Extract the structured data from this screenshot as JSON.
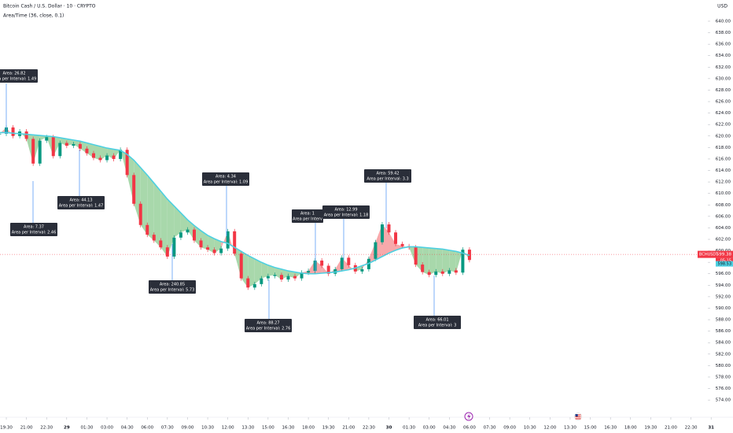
{
  "header": {
    "title": "Bitcoin Cash / U.S. Dollar · 10 · CRYPTO",
    "indicator": "Area/Time (36, close, 0.1)",
    "currency": "USD"
  },
  "chart_data": {
    "type": "candlestick",
    "x": [
      -0.5,
      0,
      0.5,
      1,
      1.5,
      2,
      2.5,
      3,
      3.5,
      4,
      4.5,
      5,
      5.5,
      6,
      6.5,
      7,
      7.5,
      8,
      8.5,
      9,
      9.5,
      10,
      10.5,
      11,
      11.5,
      12,
      12.5,
      13,
      13.5,
      14,
      14.5,
      15,
      15.5,
      16,
      16.5,
      17,
      17.5,
      18,
      18.5,
      19,
      19.5,
      20,
      20.5,
      21,
      21.5,
      22,
      22.5,
      23,
      23.5,
      24,
      24.5,
      25,
      25.5,
      26,
      26.5,
      27,
      27.5,
      28,
      28.5,
      29,
      29.5,
      30,
      30.5,
      31,
      31.5,
      32,
      32.5,
      33,
      33.5,
      34,
      34.5
    ],
    "values": [
      620.4,
      621.5,
      620,
      620.8,
      619.5,
      615.2,
      619.2,
      619.8,
      616.5,
      618.8,
      618.3,
      618.6,
      617.8,
      617,
      616.2,
      615.8,
      616.6,
      616,
      617.6,
      613.2,
      608.2,
      604.5,
      602.8,
      601.8,
      600.6,
      599,
      602.3,
      603.2,
      603.7,
      601.8,
      600.6,
      600.2,
      599.6,
      600.4,
      603.4,
      599.5,
      595.2,
      593.6,
      594.2,
      595.2,
      595.6,
      595.8,
      595,
      595.6,
      595.2,
      596.2,
      596.5,
      598.3,
      597.4,
      596,
      596.8,
      598.8,
      597.5,
      596.4,
      596.8,
      598.6,
      601.5,
      604.6,
      603.2,
      601.2,
      600.8,
      600.6,
      597.6,
      596.3,
      595.8,
      596.4,
      596,
      596.6,
      596.2,
      600.2,
      598.4
    ],
    "up_color": "#089981",
    "down_color": "#f23645",
    "ma": {
      "color": "#4dd0e1",
      "values": [
        620.6,
        620.6,
        620.5,
        620.4,
        620.3,
        620.2,
        620.1,
        620,
        619.9,
        619.7,
        619.5,
        619.3,
        619.1,
        618.8,
        618.5,
        618.2,
        617.9,
        617.7,
        617.5,
        616.8,
        615.8,
        614.5,
        613.2,
        611.8,
        610.4,
        609,
        607.8,
        606.6,
        605.4,
        604.4,
        603.5,
        602.7,
        602.1,
        601.6,
        601.3,
        600.6,
        599.9,
        599.2,
        598.6,
        598,
        597.5,
        597.1,
        596.8,
        596.5,
        596.3,
        596.1,
        596,
        596,
        596.1,
        596.2,
        596.3,
        596.5,
        596.7,
        597,
        597.4,
        597.8,
        598.4,
        599,
        599.6,
        600.1,
        600.5,
        600.7,
        600.7,
        600.6,
        600.5,
        600.4,
        600.3,
        600.1,
        599.9,
        599.6,
        599.2
      ]
    },
    "fill_colors": {
      "above": "#f7a9ab",
      "below": "#a8d8ab"
    },
    "xlim": [
      -0.47,
      54.13
    ],
    "ylim": [
      571,
      643.7
    ],
    "xticks": [
      {
        "value": 0,
        "label": "19:30"
      },
      {
        "value": 1.5,
        "label": "21:00"
      },
      {
        "value": 3,
        "label": "22:30"
      },
      {
        "value": 4.5,
        "label": "29"
      },
      {
        "value": 6,
        "label": "01:30"
      },
      {
        "value": 7.5,
        "label": "03:00"
      },
      {
        "value": 9,
        "label": "04:30"
      },
      {
        "value": 10.5,
        "label": "06:00"
      },
      {
        "value": 12,
        "label": "07:30"
      },
      {
        "value": 13.5,
        "label": "09:00"
      },
      {
        "value": 15,
        "label": "10:30"
      },
      {
        "value": 16.5,
        "label": "12:00"
      },
      {
        "value": 18,
        "label": "13:30"
      },
      {
        "value": 19.5,
        "label": "15:00"
      },
      {
        "value": 21,
        "label": "16:30"
      },
      {
        "value": 22.5,
        "label": "18:00"
      },
      {
        "value": 24,
        "label": "19:30"
      },
      {
        "value": 25.5,
        "label": "21:00"
      },
      {
        "value": 27,
        "label": "22:30"
      },
      {
        "value": 28.5,
        "label": "30"
      },
      {
        "value": 30,
        "label": "01:30"
      },
      {
        "value": 31.5,
        "label": "03:00"
      },
      {
        "value": 33,
        "label": "04:30"
      },
      {
        "value": 34.5,
        "label": "06:00"
      },
      {
        "value": 36,
        "label": "07:30"
      },
      {
        "value": 37.5,
        "label": "09:00"
      },
      {
        "value": 39,
        "label": "10:30"
      },
      {
        "value": 40.5,
        "label": "12:00"
      },
      {
        "value": 42,
        "label": "13:30"
      },
      {
        "value": 43.5,
        "label": "15:00"
      },
      {
        "value": 45,
        "label": "16:30"
      },
      {
        "value": 46.5,
        "label": "18:00"
      },
      {
        "value": 48,
        "label": "19:30"
      },
      {
        "value": 49.5,
        "label": "21:00"
      },
      {
        "value": 51,
        "label": "22:30"
      },
      {
        "value": 52.5,
        "label": "31"
      }
    ],
    "yticks": [
      {
        "value": 640,
        "label": "640.00"
      },
      {
        "value": 638,
        "label": "638.00"
      },
      {
        "value": 636,
        "label": "636.00"
      },
      {
        "value": 634,
        "label": "634.00"
      },
      {
        "value": 632,
        "label": "632.00"
      },
      {
        "value": 630,
        "label": "630.00"
      },
      {
        "value": 628,
        "label": "628.00"
      },
      {
        "value": 626,
        "label": "626.00"
      },
      {
        "value": 624,
        "label": "624.00"
      },
      {
        "value": 622,
        "label": "622.00"
      },
      {
        "value": 620,
        "label": "620.00"
      },
      {
        "value": 618,
        "label": "618.00"
      },
      {
        "value": 616,
        "label": "616.00"
      },
      {
        "value": 614,
        "label": "614.00"
      },
      {
        "value": 612,
        "label": "612.00"
      },
      {
        "value": 610,
        "label": "610.00"
      },
      {
        "value": 608,
        "label": "608.00"
      },
      {
        "value": 606,
        "label": "606.00"
      },
      {
        "value": 604,
        "label": "604.00"
      },
      {
        "value": 602,
        "label": "602.00"
      },
      {
        "value": 600,
        "label": "600.00"
      },
      {
        "value": 598,
        "label": "598.00"
      },
      {
        "value": 596,
        "label": "596.00"
      },
      {
        "value": 594,
        "label": "594.00"
      },
      {
        "value": 592,
        "label": "592.00"
      },
      {
        "value": 590,
        "label": "590.00"
      },
      {
        "value": 588,
        "label": "588.00"
      },
      {
        "value": 586,
        "label": "586.00"
      },
      {
        "value": 584,
        "label": "584.00"
      },
      {
        "value": 582,
        "label": "582.00"
      },
      {
        "value": 580,
        "label": "580.00"
      },
      {
        "value": 578,
        "label": "578.00"
      },
      {
        "value": 576,
        "label": "576.00"
      },
      {
        "value": 574,
        "label": "574.00"
      }
    ],
    "last_symbol": "BCHUSDT",
    "last_price": 599.38,
    "countdown": "05:15",
    "ma_last": 598.53,
    "annotations": [
      {
        "lines": [
          "Area: 26.82",
          "Area per Interval: 1.49"
        ]
      },
      {
        "lines": [
          "Area: 7.37",
          "Area per Interval: 2.46"
        ]
      },
      {
        "lines": [
          "Area: 44.13",
          "Area per Interval: 1.47"
        ]
      },
      {
        "lines": [
          "Area: 240.85",
          "Area per Interval: 5.73"
        ]
      },
      {
        "lines": [
          "Area: 4.34",
          "Area per Interval: 1.09"
        ]
      },
      {
        "lines": [
          "Area: 88.27",
          "Area per Interval: 2.76"
        ]
      },
      {
        "lines": [
          "Area: 1",
          "Area per Interv"
        ]
      },
      {
        "lines": [
          "Area: 12.99",
          "Area per Interval: 1.18"
        ]
      },
      {
        "lines": [
          "Area: 59.42",
          "Area per Interval: 3.3"
        ]
      },
      {
        "lines": [
          "Area: 66.01",
          "Area per Interval: 3"
        ]
      }
    ]
  }
}
